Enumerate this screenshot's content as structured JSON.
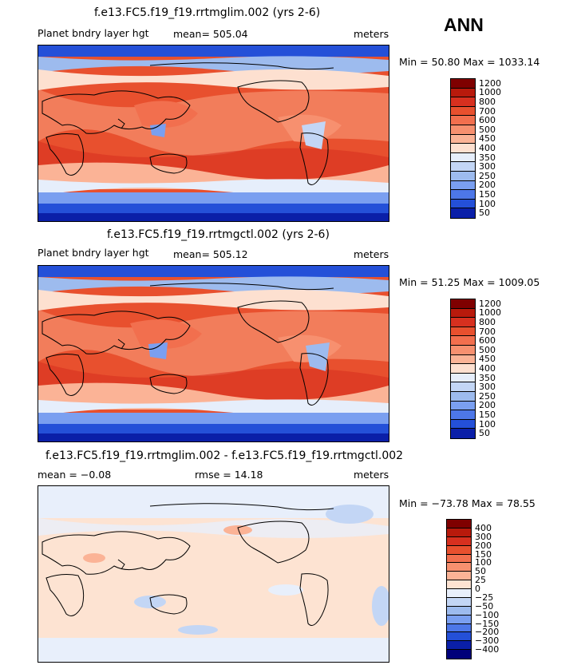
{
  "season": "ANN",
  "panels": [
    {
      "title": "f.e13.FC5.f19_f19.rrtmglim.002 (yrs 2-6)",
      "variable": "Planet bndry layer hgt",
      "mean": "mean= 505.04",
      "units": "meters",
      "minmax": "Min =  50.80 Max = 1033.14",
      "levels": [
        "1200",
        "1000",
        "800",
        "700",
        "600",
        "500",
        "450",
        "400",
        "350",
        "300",
        "250",
        "200",
        "150",
        "100",
        "50"
      ],
      "colors": [
        "#7f0000",
        "#b81a0c",
        "#d7301f",
        "#e8502e",
        "#f26f4e",
        "#f7906f",
        "#fbb396",
        "#fde0d0",
        "#e6eefb",
        "#c3d6f5",
        "#9dbbee",
        "#7a9ff0",
        "#4d77e8",
        "#2450d8",
        "#0a1fa8"
      ]
    },
    {
      "title": "f.e13.FC5.f19_f19.rrtmgctl.002 (yrs 2-6)",
      "variable": "Planet bndry layer hgt",
      "mean": "mean= 505.12",
      "units": "meters",
      "minmax": "Min =  51.25 Max = 1009.05",
      "levels": [
        "1200",
        "1000",
        "800",
        "700",
        "600",
        "500",
        "450",
        "400",
        "350",
        "300",
        "250",
        "200",
        "150",
        "100",
        "50"
      ],
      "colors": [
        "#7f0000",
        "#b81a0c",
        "#d7301f",
        "#e8502e",
        "#f26f4e",
        "#f7906f",
        "#fbb396",
        "#fde0d0",
        "#e6eefb",
        "#c3d6f5",
        "#9dbbee",
        "#7a9ff0",
        "#4d77e8",
        "#2450d8",
        "#0a1fa8"
      ]
    },
    {
      "title": "f.e13.FC5.f19_f19.rrtmglim.002 - f.e13.FC5.f19_f19.rrtmgctl.002",
      "mean": "mean =  −0.08",
      "rmse": "rmse =  14.18",
      "units": "meters",
      "minmax": "Min = −73.78 Max =  78.55",
      "levels": [
        "400",
        "300",
        "200",
        "150",
        "100",
        "50",
        "25",
        "0",
        "−25",
        "−50",
        "−100",
        "−150",
        "−200",
        "−300",
        "−400"
      ],
      "colors": [
        "#7f0000",
        "#b81a0c",
        "#d7301f",
        "#e8502e",
        "#f26f4e",
        "#f7906f",
        "#fbb396",
        "#fde3d2",
        "#e8effb",
        "#c3d6f5",
        "#9dbbee",
        "#7a9ff0",
        "#4d77e8",
        "#2450d8",
        "#0a1fa8",
        "#00007a"
      ]
    }
  ]
}
